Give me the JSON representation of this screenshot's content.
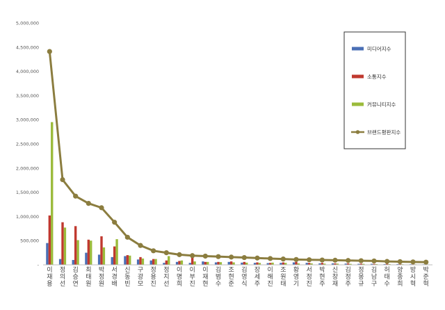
{
  "chart_data": {
    "type": "bar",
    "y_ticks": [
      "5,000,000",
      "4,500,000",
      "4,000,000",
      "3,500,000",
      "3,000,000",
      "2,500,000",
      "2,000,000",
      "1,500,000",
      "1,000,000",
      "500,000",
      "-"
    ],
    "ylim": [
      0,
      5000000
    ],
    "grid": false,
    "legend_position": "top-right",
    "categories": [
      "이재용",
      "정의선",
      "김승연",
      "최태원",
      "박정원",
      "서경배",
      "신동빈",
      "구광모",
      "정용진",
      "정지선",
      "이명희",
      "이부진",
      "이재현",
      "김범수",
      "조현준",
      "김영식",
      "장세주",
      "이해진",
      "조원태",
      "황영기",
      "서정진",
      "박현주",
      "신창재",
      "김정주",
      "정몽규",
      "김남구",
      "허태수",
      "양종희",
      "방시혁",
      "박준혁"
    ],
    "series": [
      {
        "name": "미디어지수",
        "color": "#4a6fb5",
        "values": [
          450000,
          120000,
          100000,
          250000,
          210000,
          160000,
          180000,
          110000,
          90000,
          40000,
          60000,
          40000,
          70000,
          50000,
          60000,
          45000,
          40000,
          35000,
          40000,
          50000,
          40000,
          30000,
          30000,
          25000,
          20000,
          20000,
          15000,
          15000,
          12000,
          10000
        ]
      },
      {
        "name": "소통지수",
        "color": "#c0392f",
        "values": [
          1020000,
          880000,
          800000,
          520000,
          590000,
          380000,
          200000,
          160000,
          120000,
          90000,
          80000,
          200000,
          60000,
          60000,
          70000,
          60000,
          50000,
          40000,
          50000,
          60000,
          40000,
          40000,
          30000,
          30000,
          25000,
          20000,
          20000,
          15000,
          12000,
          10000
        ]
      },
      {
        "name": "커뮤니티지수",
        "color": "#9bbb3b",
        "values": [
          2950000,
          770000,
          510000,
          500000,
          360000,
          530000,
          190000,
          130000,
          120000,
          180000,
          90000,
          70000,
          60000,
          55000,
          50000,
          45000,
          40000,
          45000,
          40000,
          30000,
          30000,
          25000,
          25000,
          20000,
          20000,
          15000,
          15000,
          12000,
          10000,
          8000
        ]
      },
      {
        "name": "브랜드평판지수",
        "color": "#8b7d3f",
        "render": "line",
        "values": [
          4410000,
          1760000,
          1420000,
          1270000,
          1180000,
          880000,
          570000,
          400000,
          290000,
          250000,
          210000,
          190000,
          180000,
          170000,
          160000,
          150000,
          140000,
          130000,
          120000,
          110000,
          105000,
          100000,
          95000,
          90000,
          85000,
          80000,
          70000,
          65000,
          60000,
          55000
        ]
      }
    ]
  }
}
